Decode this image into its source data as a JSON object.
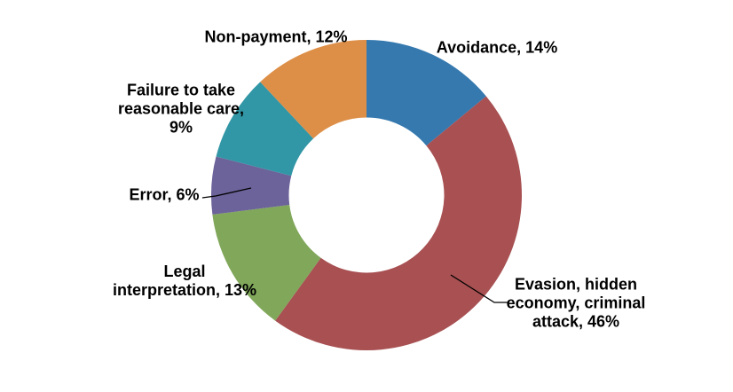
{
  "chart_data": {
    "type": "pie",
    "subtype": "donut",
    "title": "",
    "categories": [
      "Avoidance",
      "Evasion, hidden economy, criminal attack",
      "Legal interpretation",
      "Error",
      "Failure to take reasonable care",
      "Non-payment"
    ],
    "values": [
      14,
      46,
      13,
      6,
      9,
      12
    ],
    "unit": "%",
    "colors": [
      "#3579AF",
      "#A85052",
      "#80A75A",
      "#6B6399",
      "#3196A5",
      "#DD8F48"
    ],
    "start_angle_deg": 0,
    "direction": "clockwise",
    "inner_radius_ratio": 0.5,
    "legend_position": "none",
    "data_labels": [
      "Avoidance, 14%",
      "Evasion, hidden economy, criminal attack, 46%",
      "Legal interpretation, 13%",
      "Error, 6%",
      "Failure to take reasonable care, 9%",
      "Non-payment, 12%"
    ]
  },
  "labels": {
    "avoidance": {
      "lines": [
        "Avoidance, 14%"
      ]
    },
    "evasion": {
      "lines": [
        "Evasion, hidden",
        "economy, criminal",
        "attack, 46%"
      ]
    },
    "legal": {
      "lines": [
        "Legal",
        "interpretation, 13%"
      ]
    },
    "error": {
      "lines": [
        "Error, 6%"
      ]
    },
    "failure": {
      "lines": [
        "Failure to take",
        "reasonable care,",
        "9%"
      ]
    },
    "nonpayment": {
      "lines": [
        "Non-payment, 12%"
      ]
    }
  }
}
